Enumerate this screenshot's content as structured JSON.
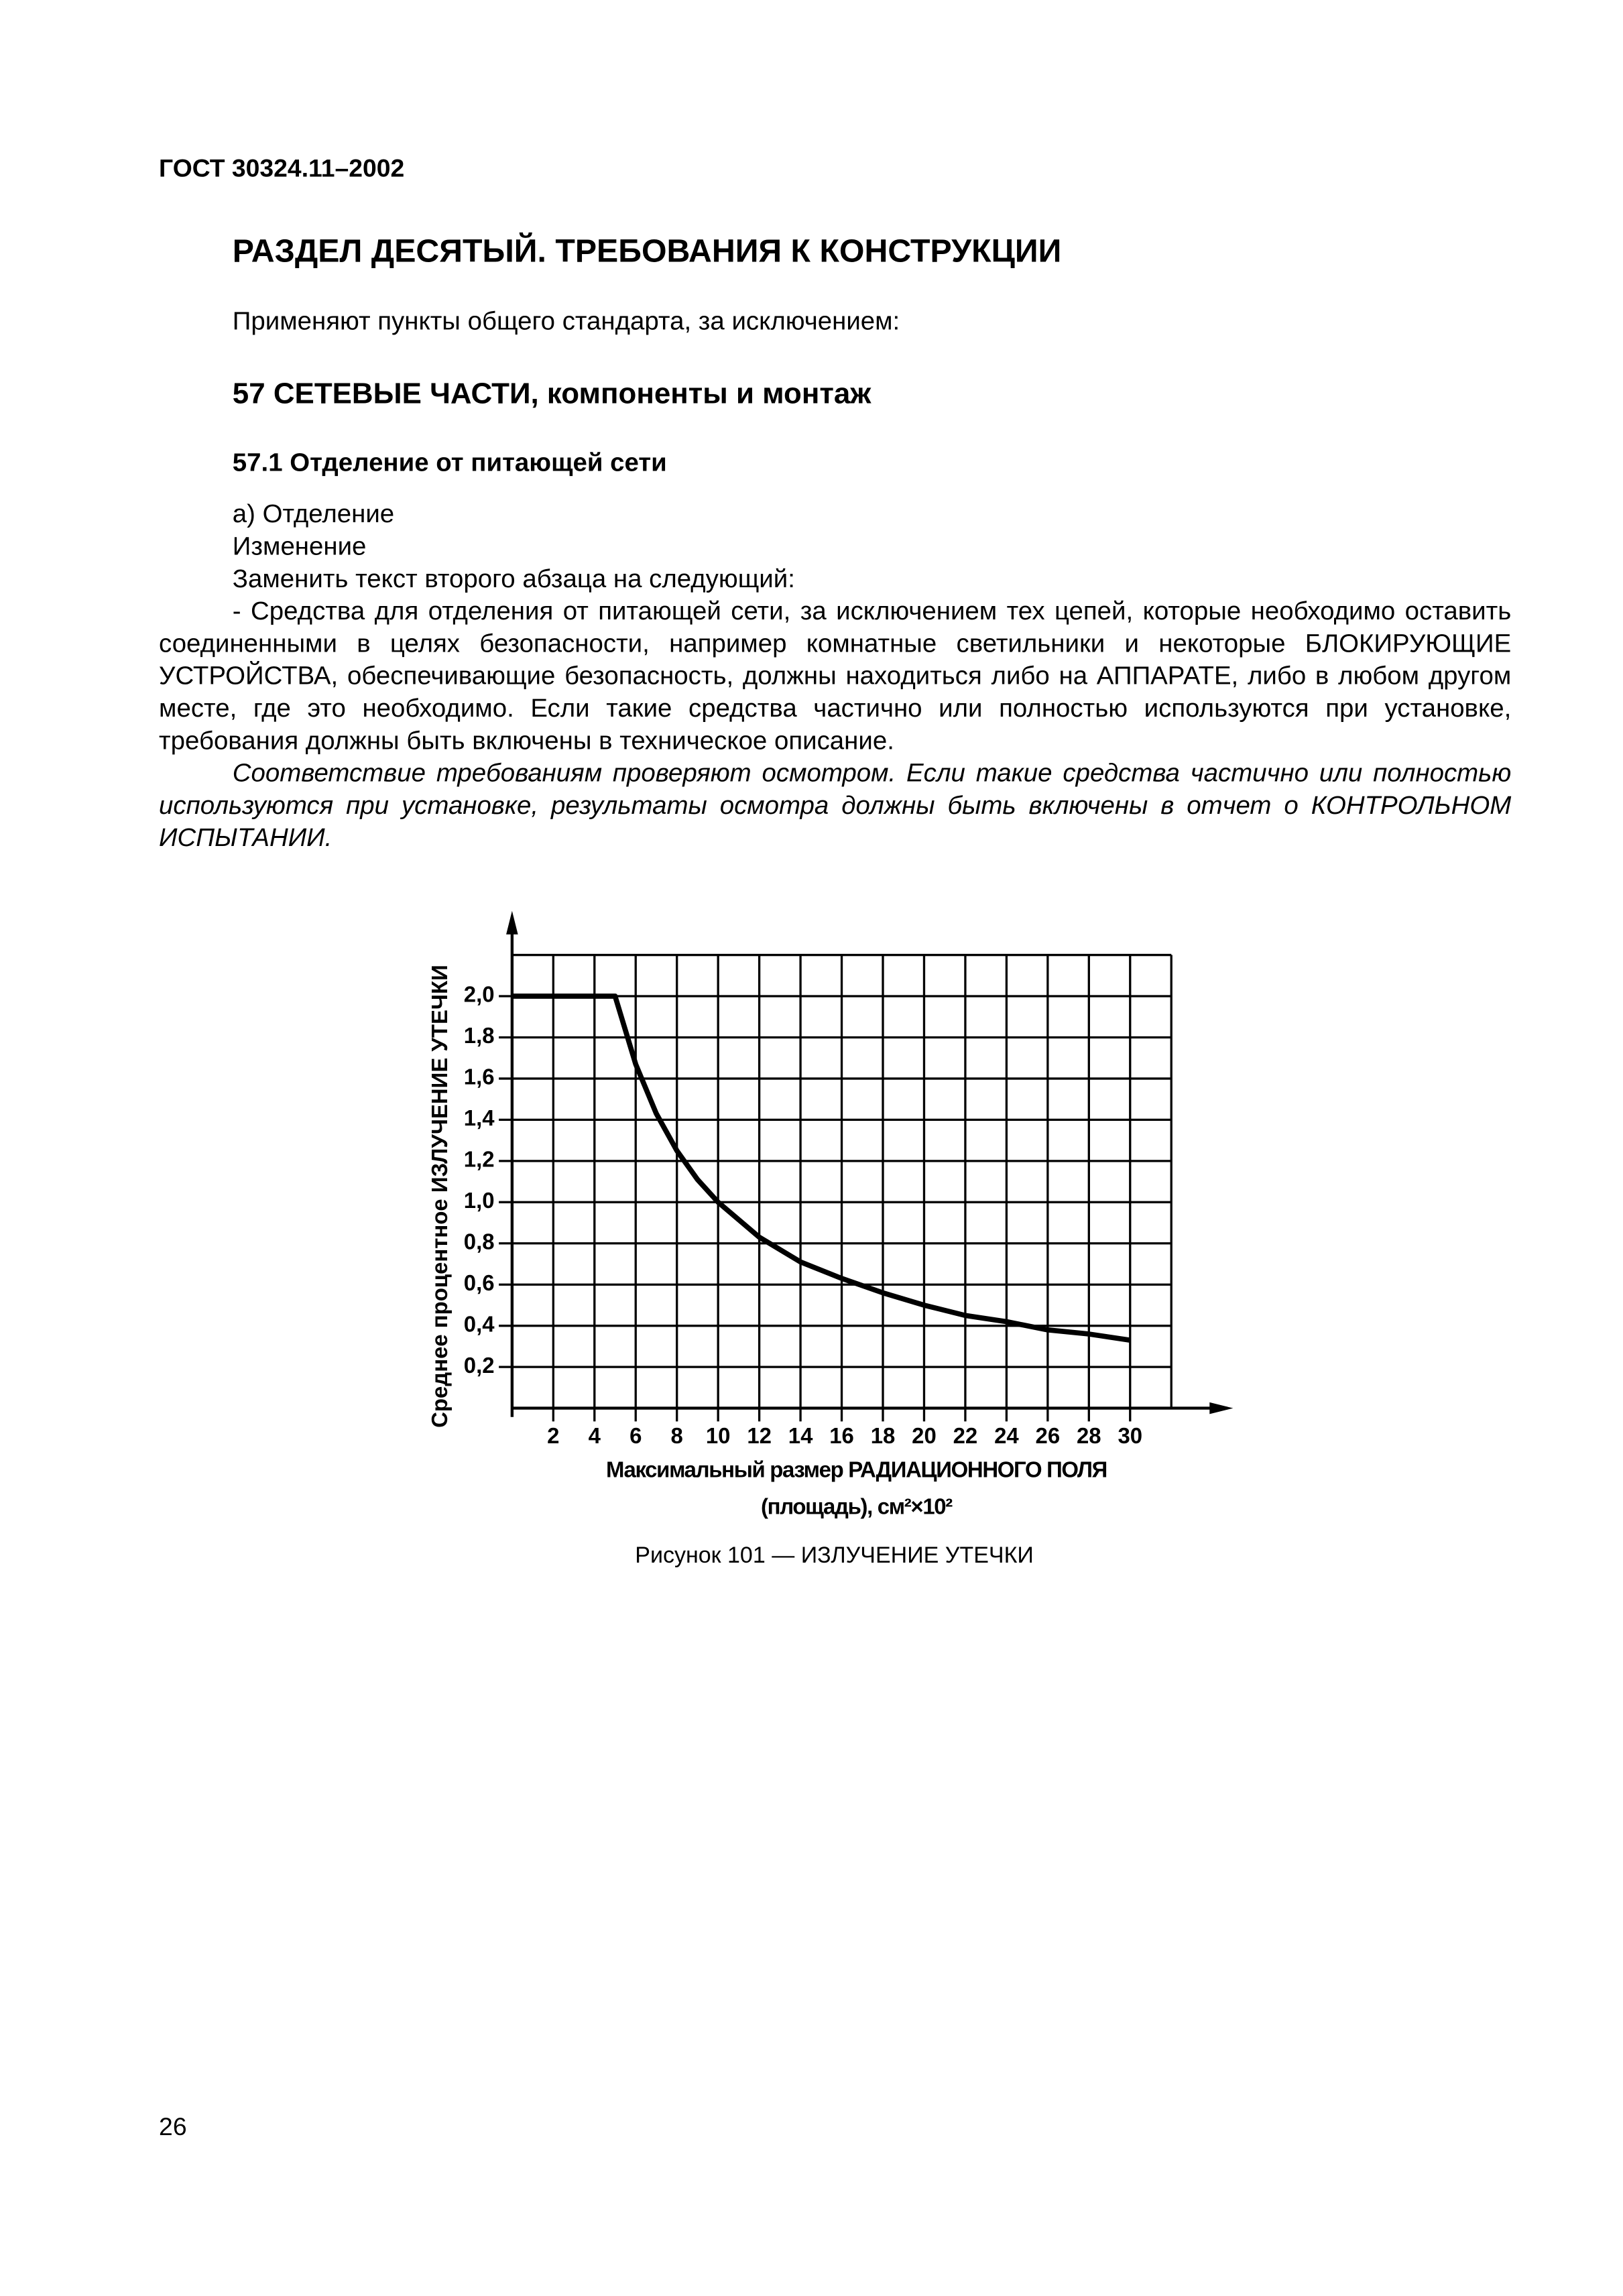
{
  "header": "ГОСТ 30324.11–2002",
  "section_title": "РАЗДЕЛ ДЕСЯТЫЙ. ТРЕБОВАНИЯ К КОНСТРУКЦИИ",
  "intro": "Применяют пункты общего стандарта, за исключением:",
  "clause_heading": "57 СЕТЕВЫЕ ЧАСТИ, компоненты и монтаж",
  "subclause_heading": "57.1 Отделение от питающей сети",
  "lines": [
    "а) Отделение",
    "Изменение",
    "Заменить текст второго абзаца на следующий:"
  ],
  "paragraph": "- Средства для отделения от питающей сети, за исключением тех цепей, которые необходимо оставить соединенными в целях безопасности, например комнатные светильники и некоторые БЛО­КИРУЮЩИЕ УСТРОЙСТВА, обеспечивающие безопасность, должны находиться либо на АППАРАТЕ, либо в любом другом месте, где это необходимо. Если такие средства частично или полностью исполь­зуются при установке, требования должны быть включены в техническое описание.",
  "compliance": "Соответствие требованиям проверяют осмотром. Если такие средства частично или пол­ностью используются при установке, результаты осмотра должны быть включены в отчет о КОН­ТРОЛЬНОМ ИСПЫТАНИИ.",
  "chart_data": {
    "type": "line",
    "x_label": [
      "Максимальный размер РАДИАЦИОННОГО ПОЛЯ",
      "(площадь), см²×10²"
    ],
    "y_label": "Среднее процентное ИЗЛУЧЕНИЕ УТЕЧКИ",
    "x": [
      0,
      5,
      6,
      7,
      8,
      9,
      10,
      12,
      14,
      16,
      18,
      20,
      22,
      24,
      26,
      28,
      30
    ],
    "values": [
      2,
      2,
      1.67,
      1.43,
      1.25,
      1.11,
      1,
      0.83,
      0.71,
      0.63,
      0.56,
      0.5,
      0.45,
      0.42,
      0.38,
      0.36,
      0.33
    ],
    "color": "#000000",
    "xlim": [
      0,
      32
    ],
    "ylim": [
      0,
      2.2
    ],
    "xticks": [
      2,
      4,
      6,
      8,
      10,
      12,
      14,
      16,
      18,
      20,
      22,
      24,
      26,
      28,
      30
    ],
    "yticks": [
      {
        "value": 0.2,
        "label": "0,2"
      },
      {
        "value": 0.4,
        "label": "0,4"
      },
      {
        "value": 0.6,
        "label": "0,6"
      },
      {
        "value": 0.8,
        "label": "0,8"
      },
      {
        "value": 1.0,
        "label": "1,0"
      },
      {
        "value": 1.2,
        "label": "1,2"
      },
      {
        "value": 1.4,
        "label": "1,4"
      },
      {
        "value": 1.6,
        "label": "1,6"
      },
      {
        "value": 1.8,
        "label": "1,8"
      },
      {
        "value": 2.0,
        "label": "2,0"
      }
    ],
    "grid": true
  },
  "figure_caption": "Рисунок 101 — ИЗЛУЧЕНИЕ УТЕЧКИ",
  "page_number": "26"
}
